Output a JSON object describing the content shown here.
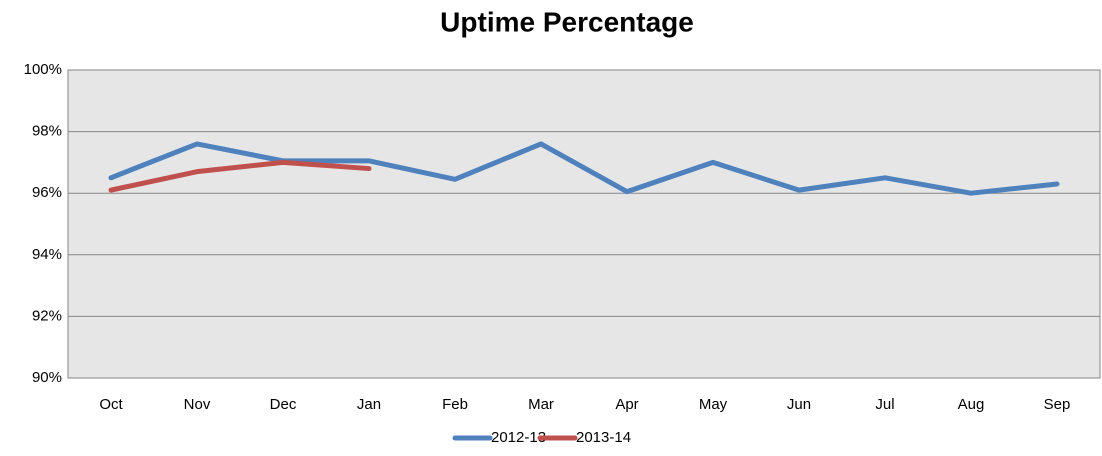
{
  "chart_data": {
    "type": "line",
    "title": "Uptime Percentage",
    "categories": [
      "Oct",
      "Nov",
      "Dec",
      "Jan",
      "Feb",
      "Mar",
      "Apr",
      "May",
      "Jun",
      "Jul",
      "Aug",
      "Sep"
    ],
    "series": [
      {
        "name": "2012-13",
        "color": "#4f81bd",
        "values": [
          96.5,
          97.6,
          97.05,
          97.05,
          96.45,
          97.6,
          96.05,
          97.0,
          96.1,
          96.5,
          96.0,
          96.3
        ]
      },
      {
        "name": "2013-14",
        "color": "#c0504d",
        "values": [
          96.1,
          96.7,
          97.0,
          96.8,
          null,
          null,
          null,
          null,
          null,
          null,
          null,
          null
        ]
      }
    ],
    "ylim": [
      90,
      100
    ],
    "yticks": [
      {
        "value": 90,
        "label": "90%"
      },
      {
        "value": 92,
        "label": "92%"
      },
      {
        "value": 94,
        "label": "94%"
      },
      {
        "value": 96,
        "label": "96%"
      },
      {
        "value": 98,
        "label": "98%"
      },
      {
        "value": 100,
        "label": "100%"
      }
    ],
    "grid": true,
    "legend": "bottom"
  }
}
